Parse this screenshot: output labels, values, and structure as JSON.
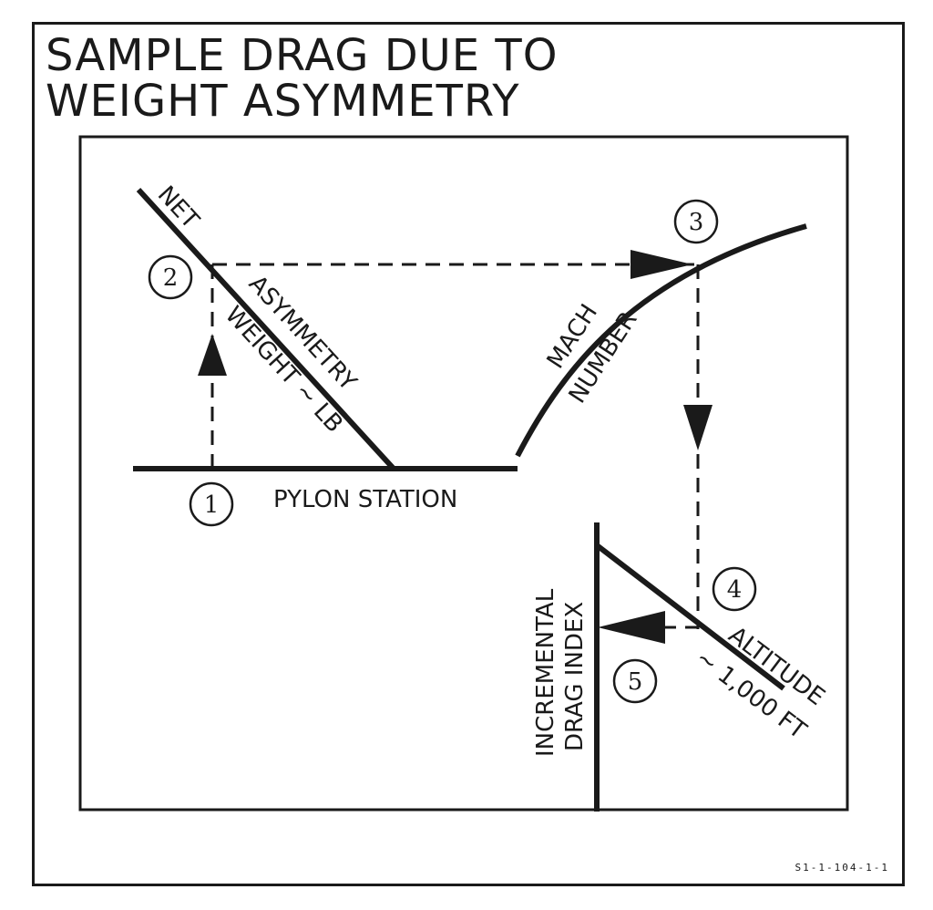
{
  "title_line1": "SAMPLE DRAG DUE TO",
  "title_line2": "WEIGHT ASYMMETRY",
  "figure_id": "S1-1-104-1-1",
  "axes": {
    "pylon_station": "PYLON STATION",
    "net_asymmetry_line1": "NET",
    "net_asymmetry_line2": "ASYMMETRY",
    "weight_lb": "WEIGHT ~ LB",
    "mach_line1": "MACH",
    "mach_line2": "NUMBER",
    "altitude_line1": "ALTITUDE",
    "altitude_line2": "~ 1,000 FT",
    "drag_index_line1": "INCREMENTAL",
    "drag_index_line2": "DRAG INDEX"
  },
  "steps": [
    "1",
    "2",
    "3",
    "4",
    "5"
  ],
  "colors": {
    "ink": "#1a1a1a",
    "paper": "#ffffff"
  }
}
